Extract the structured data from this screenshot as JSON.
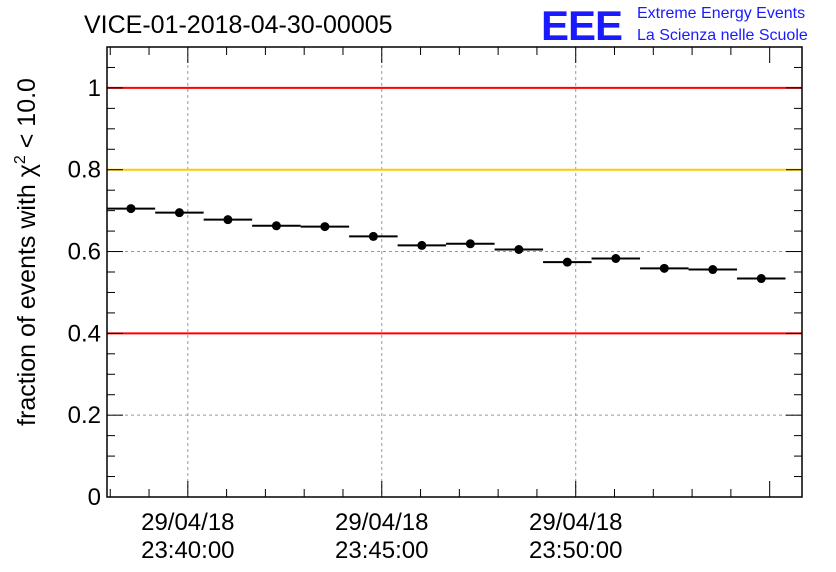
{
  "logo": {
    "mark": "EEE",
    "line1": "Extreme Energy Events",
    "line2": "La Scienza nelle Scuole",
    "color": "#1a1aff"
  },
  "chart_data": {
    "type": "scatter",
    "title": "VICE-01-2018-04-30-00005",
    "ylabel": "fraction of events with χ² < 10.0",
    "ylabel_parts": {
      "prefix": "fraction of events with ",
      "symbol": "χ",
      "sup": "2",
      "suffix": " < 10.0"
    },
    "xlabel": "",
    "x_axis_kind": "time",
    "x_range": [
      "2018-04-29 23:37:55",
      "2018-04-29 23:55:50"
    ],
    "ylim": [
      0,
      1.1
    ],
    "y_ticks": [
      0,
      0.2,
      0.4,
      0.6,
      0.8,
      1
    ],
    "y_tick_labels": [
      "0",
      "0.2",
      "0.4",
      "0.6",
      "0.8",
      "1"
    ],
    "x_ticks": [
      {
        "time": "2018-04-29 23:40:00",
        "label_date": "29/04/18",
        "label_time": "23:40:00"
      },
      {
        "time": "2018-04-29 23:45:00",
        "label_date": "29/04/18",
        "label_time": "23:45:00"
      },
      {
        "time": "2018-04-29 23:50:00",
        "label_date": "29/04/18",
        "label_time": "23:50:00"
      }
    ],
    "reference_lines": [
      {
        "y": 1.0,
        "color": "#ff0000"
      },
      {
        "y": 0.8,
        "color": "#ffcc00"
      },
      {
        "y": 0.4,
        "color": "#ff0000"
      }
    ],
    "grid": true,
    "bin_width_seconds": 75,
    "series": [
      {
        "x": [
          "2018-04-29 23:38:32",
          "2018-04-29 23:39:47",
          "2018-04-29 23:41:02",
          "2018-04-29 23:42:17",
          "2018-04-29 23:43:32",
          "2018-04-29 23:44:47",
          "2018-04-29 23:46:02",
          "2018-04-29 23:47:17",
          "2018-04-29 23:48:32",
          "2018-04-29 23:49:47",
          "2018-04-29 23:51:02",
          "2018-04-29 23:52:17",
          "2018-04-29 23:53:32",
          "2018-04-29 23:54:47"
        ],
        "y": [
          0.705,
          0.695,
          0.678,
          0.663,
          0.661,
          0.637,
          0.615,
          0.619,
          0.605,
          0.574,
          0.583,
          0.559,
          0.556,
          0.534
        ],
        "color": "#000000"
      }
    ]
  }
}
